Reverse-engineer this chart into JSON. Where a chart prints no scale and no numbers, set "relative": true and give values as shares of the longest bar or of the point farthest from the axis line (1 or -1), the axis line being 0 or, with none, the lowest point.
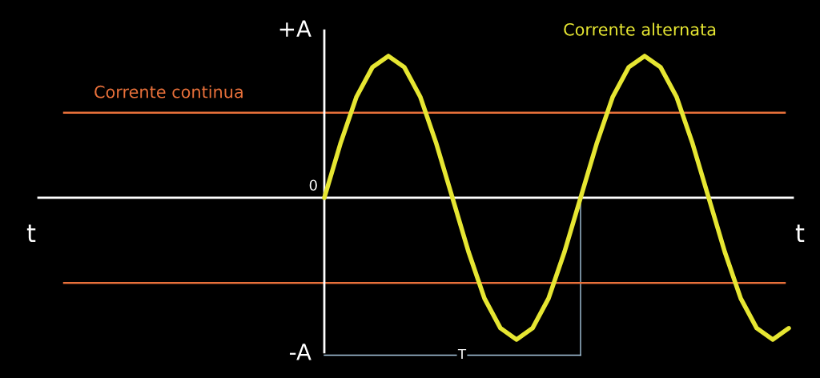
{
  "chart_data": {
    "type": "line",
    "relative": true,
    "grid": false,
    "categories": [
      null,
      null,
      null,
      null,
      null,
      null,
      null,
      null,
      null,
      null,
      null,
      null,
      null,
      null,
      null,
      null,
      null,
      null,
      null,
      null,
      null,
      null,
      null,
      null,
      null,
      null,
      null,
      null,
      null,
      null,
      null,
      null,
      null,
      null,
      null,
      null,
      null,
      null,
      null,
      null,
      null,
      null,
      null,
      null,
      null,
      null,
      null,
      null
    ],
    "series": [
      {
        "name": "Corrente alternata",
        "color": "#e6e632",
        "values": [
          null,
          null,
          null,
          null,
          null,
          null,
          null,
          null,
          null,
          null,
          null,
          null,
          null,
          null,
          null,
          null,
          null,
          null,
          0,
          0.38,
          0.71,
          0.92,
          1,
          0.92,
          0.71,
          0.38,
          0,
          -0.38,
          -0.71,
          -0.92,
          -1,
          -0.92,
          -0.71,
          -0.38,
          0,
          0.38,
          0.71,
          0.92,
          1,
          0.92,
          0.71,
          0.38,
          0,
          -0.38,
          -0.71,
          -0.92,
          -1,
          -0.92
        ]
      }
    ],
    "ref_lines": [
      {
        "axis": "y",
        "value": 0.6,
        "label": "Corrente continua",
        "color": "#e8703a"
      },
      {
        "axis": "y",
        "value": -0.6,
        "color": "#e8703a"
      }
    ],
    "annotations": [
      "+A",
      "0",
      "-A",
      "t",
      "t",
      "T"
    ]
  }
}
